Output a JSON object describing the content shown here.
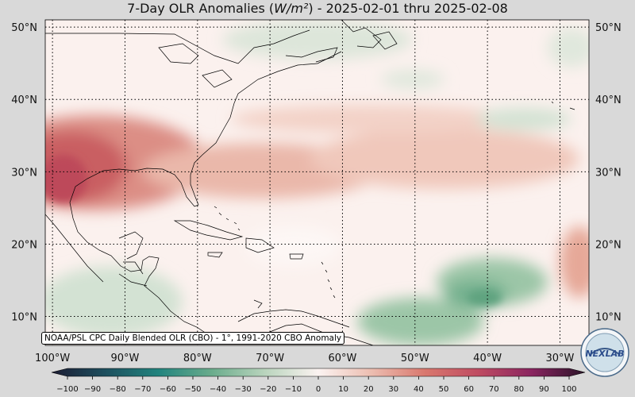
{
  "title": "7-Day OLR Anomalies (W/m²) - 2025-02-01 thru 2025-02-08",
  "title_parts": {
    "prefix": "7-Day OLR Anomalies (",
    "units": "W/m²",
    "suffix": ") - 2025-02-01 thru 2025-02-08"
  },
  "attribution": "NOAA/PSL CPC Daily Blended OLR (CBO) - 1°, 1991-2020 CBO Anomaly",
  "logo_text": "NEXLAB",
  "lat_labels": [
    "50°N",
    "40°N",
    "30°N",
    "20°N",
    "10°N"
  ],
  "lat_values": [
    50,
    40,
    30,
    20,
    10
  ],
  "lon_labels": [
    "100°W",
    "90°W",
    "80°W",
    "70°W",
    "60°W",
    "50°W",
    "40°W",
    "30°W"
  ],
  "lon_values": [
    -100,
    -90,
    -80,
    -70,
    -60,
    -50,
    -40,
    -30
  ],
  "colorbar": {
    "ticks": [
      -100,
      -90,
      -80,
      -70,
      -60,
      -50,
      -40,
      -30,
      -20,
      -10,
      0,
      10,
      20,
      30,
      40,
      50,
      60,
      70,
      80,
      90,
      100
    ],
    "colors": {
      "-100": "#1c1c33",
      "-80": "#1e4f5e",
      "-60": "#22847e",
      "-40": "#6aac8c",
      "-20": "#b9d4bd",
      "0": "#fbf3f1",
      "20": "#ecbdb0",
      "40": "#d9786e",
      "60": "#bf4c62",
      "80": "#8a2560",
      "100": "#2a1328"
    }
  },
  "map_extent": {
    "lon_min": -101,
    "lon_max": -26,
    "lat_min": 6,
    "lat_max": 51
  },
  "colors": {
    "land_outline": "#000000",
    "grid": "#000000",
    "background": "#d9d9d9"
  }
}
